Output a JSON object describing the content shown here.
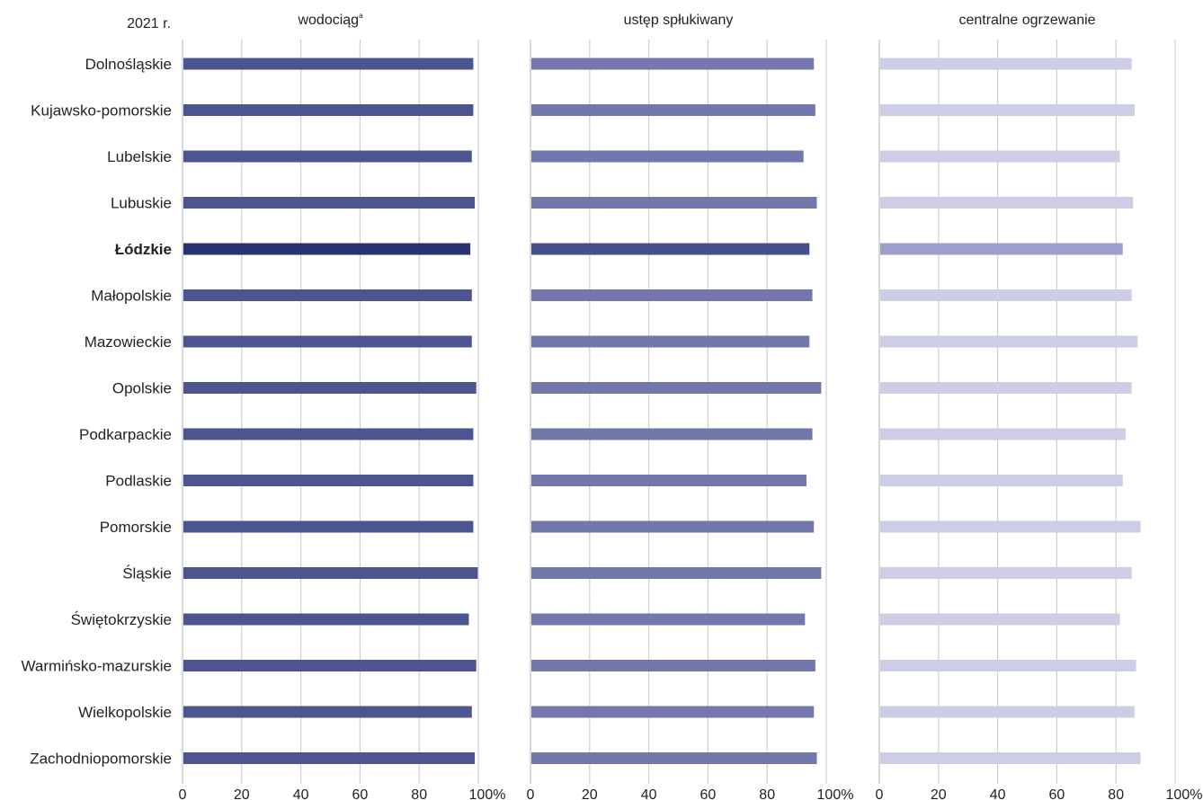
{
  "year_label": "2021 r.",
  "highlight": "Łódzkie",
  "chart_data": {
    "type": "bar",
    "orientation": "horizontal",
    "categories": [
      "Dolnośląskie",
      "Kujawsko-pomorskie",
      "Lubelskie",
      "Lubuskie",
      "Łódzkie",
      "Małopolskie",
      "Mazowieckie",
      "Opolskie",
      "Podkarpackie",
      "Podlaskie",
      "Pomorskie",
      "Śląskie",
      "Świętokrzyskie",
      "Warmińsko-mazurskie",
      "Wielkopolskie",
      "Zachodniopomorskie"
    ],
    "xlim": [
      0,
      100
    ],
    "ticks": [
      "0",
      "20",
      "40",
      "60",
      "80",
      "100%"
    ],
    "grid": true,
    "legend": "none",
    "panels": [
      {
        "title": "wodociąg",
        "title_sup": "a",
        "color": "#4d5591",
        "highlight_color": "#2b3273",
        "values": [
          98,
          98,
          97.5,
          98.5,
          97,
          97.5,
          97.5,
          99,
          98,
          98,
          98,
          99.5,
          96.5,
          99,
          97.5,
          98.5
        ]
      },
      {
        "title": "ustęp spłukiwany",
        "color": "#7277ac",
        "highlight_color": "#474f8c",
        "values": [
          95.5,
          96,
          92,
          96.5,
          94,
          95,
          94,
          98,
          95,
          93,
          95.5,
          98,
          92.5,
          96,
          95.5,
          96.5
        ]
      },
      {
        "title": "centralne ogrzewanie",
        "color": "#cdcde6",
        "highlight_color": "#9c9ecb",
        "values": [
          85,
          86,
          81,
          85.5,
          82,
          85,
          87,
          85,
          83,
          82,
          88,
          85,
          81,
          86.5,
          86,
          88
        ]
      }
    ]
  }
}
